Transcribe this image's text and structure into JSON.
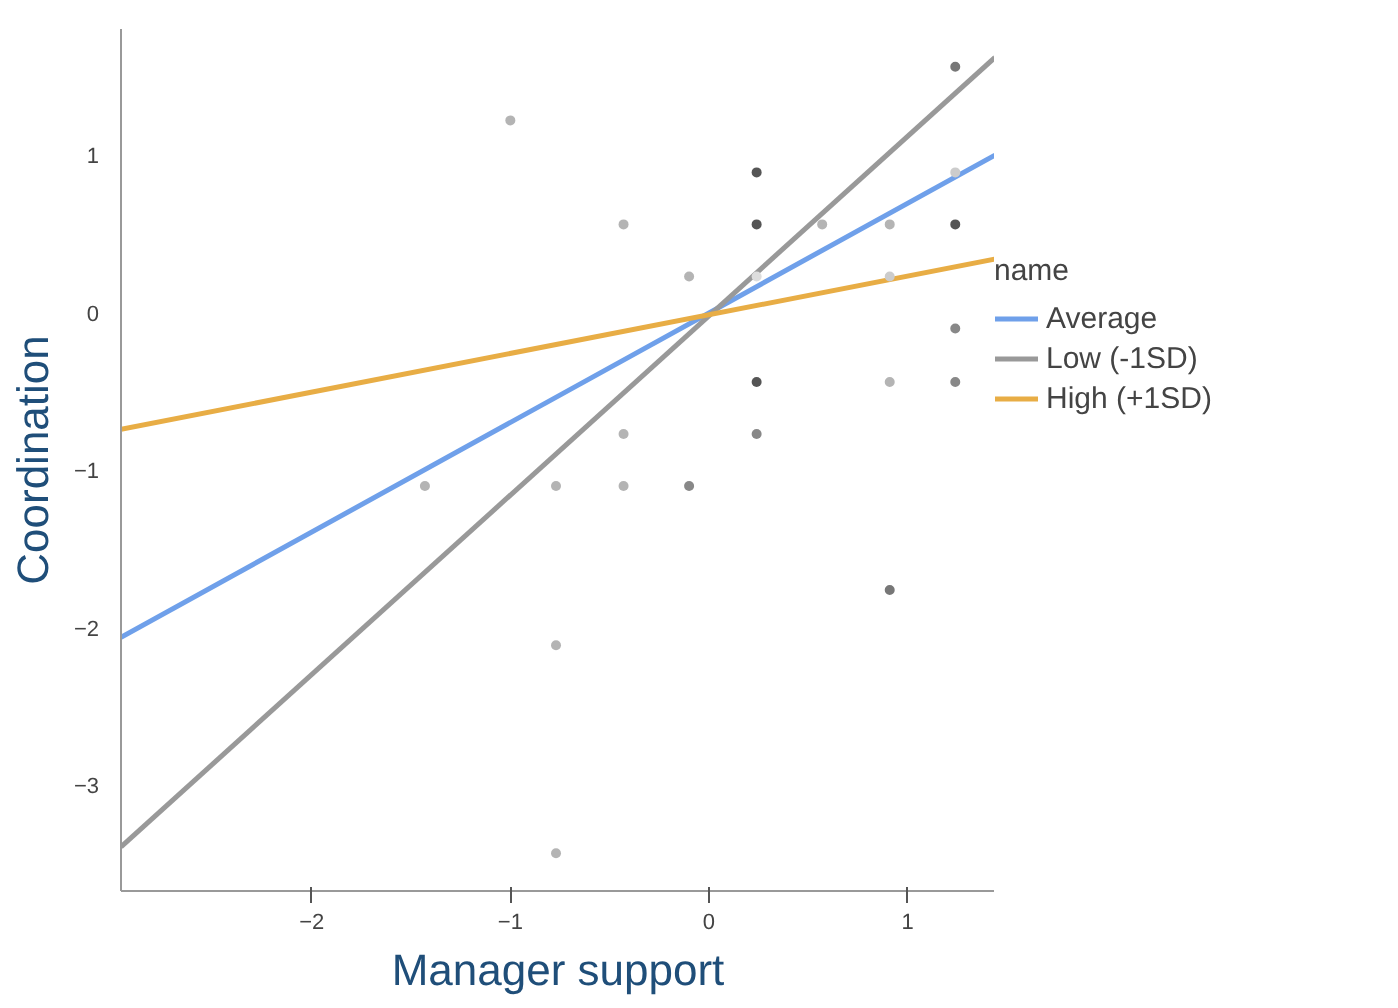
{
  "chart_data": {
    "type": "scatter",
    "xlabel": "Manager support",
    "ylabel": "Coordination",
    "legend_title": "name",
    "legend": "right",
    "grid": false,
    "xlim": [
      -2.96,
      1.44
    ],
    "ylim": [
      -3.67,
      1.8
    ],
    "xticks": [
      -2,
      -1,
      0,
      1
    ],
    "yticks": [
      -3,
      -2,
      -1,
      0,
      1
    ],
    "series": [
      {
        "marker": "circle",
        "x": [
          -1.0,
          -0.43,
          -0.1,
          0.24,
          0.24,
          0.57,
          0.91,
          1.24,
          1.24,
          1.24,
          0.91,
          0.24,
          1.24,
          0.24,
          0.91,
          1.24,
          -0.43,
          0.24,
          -1.43,
          -0.77,
          -0.43,
          -0.1,
          0.91,
          -0.77,
          -0.77
        ],
        "values": [
          1.22,
          0.56,
          0.23,
          0.89,
          0.56,
          0.56,
          0.56,
          0.56,
          0.89,
          1.56,
          0.23,
          0.23,
          -0.1,
          -0.44,
          -0.44,
          -0.44,
          -0.77,
          -0.77,
          -1.1,
          -1.1,
          -1.1,
          -1.1,
          -1.76,
          -2.11,
          -3.43
        ],
        "colors": [
          "#b4b4b4",
          "#b4b4b4",
          "#b4b4b4",
          "#555555",
          "#555555",
          "#b4b4b4",
          "#b4b4b4",
          "#555555",
          "#cccccc",
          "#777777",
          "#cccccc",
          "#dddddd",
          "#888888",
          "#555555",
          "#b4b4b4",
          "#888888",
          "#b4b4b4",
          "#888888",
          "#b4b4b4",
          "#b4b4b4",
          "#b4b4b4",
          "#888888",
          "#777777",
          "#b4b4b4",
          "#b4b4b4"
        ]
      },
      {
        "type": "line",
        "name": "Average",
        "color": "#6fa0ea",
        "x": [
          -2.96,
          1.44
        ],
        "values": [
          -2.06,
          1.0
        ]
      },
      {
        "type": "line",
        "name": "Low (-1SD)",
        "color": "#999999",
        "x": [
          -2.96,
          1.44
        ],
        "values": [
          -3.39,
          1.62
        ]
      },
      {
        "type": "line",
        "name": "High (+1SD)",
        "color": "#e8ad45",
        "x": [
          -2.96,
          1.44
        ],
        "values": [
          -0.74,
          0.34
        ]
      }
    ]
  }
}
